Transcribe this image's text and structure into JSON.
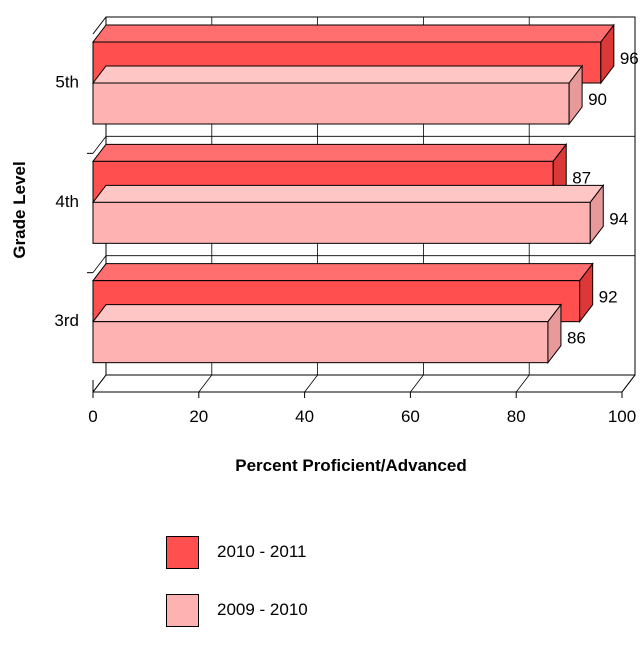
{
  "chart_data": {
    "type": "bar",
    "orientation": "horizontal",
    "style": "3d",
    "categories": [
      "5th",
      "4th",
      "3rd"
    ],
    "series": [
      {
        "name": "2010 - 2011",
        "values": [
          96,
          87,
          92
        ],
        "color": "#ff4f4f",
        "top_color": "#ff6f6f",
        "side_color": "#dd3838"
      },
      {
        "name": "2009 - 2010",
        "values": [
          90,
          94,
          86
        ],
        "color": "#ffb2b2",
        "top_color": "#ffc6c6",
        "side_color": "#e89a9a"
      }
    ],
    "xlabel": "Percent Proficient/Advanced",
    "ylabel": "Grade Level",
    "xlim": [
      0,
      100
    ],
    "xticks": [
      "0",
      "20",
      "40",
      "60",
      "80",
      "100"
    ],
    "grid": true,
    "legend_position": "bottom"
  }
}
